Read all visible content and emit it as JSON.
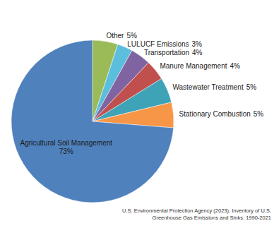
{
  "chart_data": {
    "type": "pie",
    "categories": [
      "Other",
      "LULUCF Emissions",
      "Transportation",
      "Manure Management",
      "Wastewater Treatment",
      "Stationary Combustion",
      "Agricultural Soil Management"
    ],
    "values": [
      5,
      3,
      4,
      4,
      5,
      5,
      73
    ],
    "value_labels": [
      "5%",
      "3%",
      "4%",
      "4%",
      "5%",
      "5%",
      "73%"
    ],
    "colors": [
      "#9BBB59",
      "#5BBEDC",
      "#8064A2",
      "#C0504D",
      "#3FA3B8",
      "#F79646",
      "#4F81BD"
    ],
    "data_labels": true,
    "source": [
      "U.S. Environmental Protection Agency (2023). Inventory of U.S.",
      "Greenhouse Gas Emissions and Sinks: 1990-2021"
    ]
  }
}
